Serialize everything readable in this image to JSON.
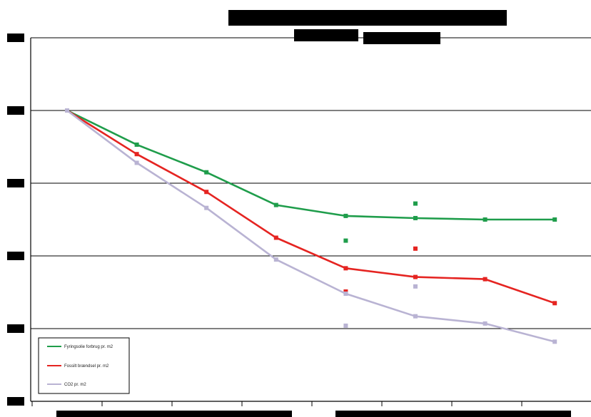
{
  "chart_data": {
    "type": "line",
    "title": "",
    "subtitle": "",
    "xlabel": "",
    "ylabel": "",
    "x": [
      1,
      2,
      3,
      4,
      5,
      6,
      7,
      8
    ],
    "ylim": [
      0,
      5
    ],
    "y_ticks": [
      0,
      1,
      2,
      3,
      4,
      5
    ],
    "grid": true,
    "legend_position": "bottom-left",
    "series": [
      {
        "name": "Fyringsolie forbrug pr. m2",
        "color": "#1f9d4b",
        "values": [
          4.0,
          3.53,
          3.15,
          2.7,
          2.55,
          2.52,
          2.5,
          2.5
        ],
        "outliers": [
          {
            "x": 5,
            "y": 2.21
          },
          {
            "x": 6,
            "y": 2.72
          }
        ]
      },
      {
        "name": "Fossilt brændsel pr. m2",
        "color": "#e52421",
        "values": [
          4.0,
          3.4,
          2.88,
          2.25,
          1.83,
          1.71,
          1.68,
          1.35
        ],
        "outliers": [
          {
            "x": 5,
            "y": 1.51
          },
          {
            "x": 6,
            "y": 2.1
          }
        ]
      },
      {
        "name": "CO2 pr. m2",
        "color": "#b9b3d3",
        "values": [
          4.0,
          3.28,
          2.66,
          1.95,
          1.48,
          1.17,
          1.07,
          0.82
        ],
        "outliers": [
          {
            "x": 5,
            "y": 1.04
          },
          {
            "x": 6,
            "y": 1.58
          }
        ]
      }
    ]
  },
  "legend_labels": {
    "green": "Fyringsolie forbrug pr. m2",
    "red": "Fossilt brændsel pr. m2",
    "purple": "CO2 pr. m2"
  }
}
